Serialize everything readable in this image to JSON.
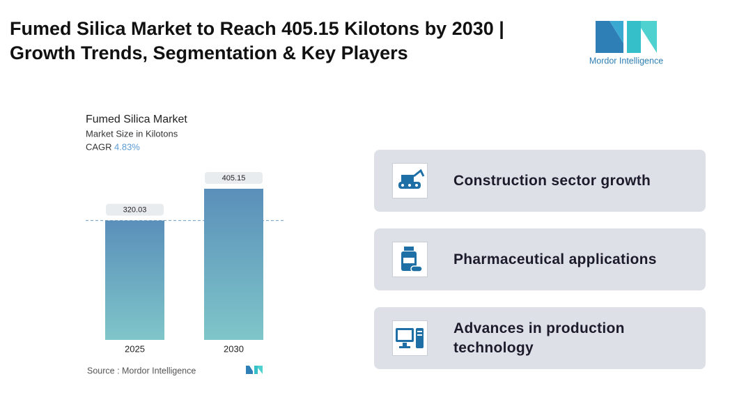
{
  "header": {
    "title_lines": [
      "Fumed Silica Market to Reach 405.15 Kilotons by 2030 |",
      "Growth Trends, Segmentation & Key Players"
    ],
    "logo_text": "Mordor Intelligence"
  },
  "chart_data": {
    "type": "bar",
    "title": "Fumed Silica Market",
    "subtitle": "Market Size in Kilotons",
    "cagr_prefix": "CAGR",
    "cagr": "4.83%",
    "categories": [
      "2025",
      "2030"
    ],
    "values": [
      320.03,
      405.15
    ],
    "color_top": "#5a8fba",
    "color_bottom": "#7fc6c9",
    "source": "Source :  Mordor Intelligence"
  },
  "drivers": [
    "Construction sector growth",
    "Pharmaceutical applications",
    "Advances in production technology"
  ]
}
